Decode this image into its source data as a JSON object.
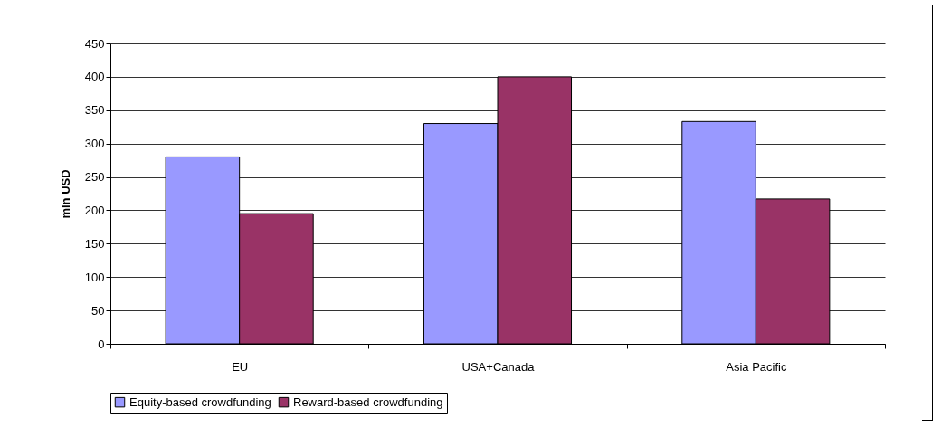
{
  "chart_data": {
    "type": "bar",
    "ylabel": "mln USD",
    "categories": [
      "EU",
      "USA+Canada",
      "Asia Pacific"
    ],
    "series": [
      {
        "name": "Equity-based crowdfunding",
        "color": "#9999ff",
        "values": [
          280,
          330,
          333
        ]
      },
      {
        "name": "Reward-based crowdfunding",
        "color": "#993366",
        "values": [
          195,
          400,
          217
        ]
      }
    ],
    "ylim": [
      0,
      450
    ],
    "yticks": [
      0,
      50,
      100,
      150,
      200,
      250,
      300,
      350,
      400,
      450
    ],
    "grid": "y",
    "legend": "bottom"
  }
}
